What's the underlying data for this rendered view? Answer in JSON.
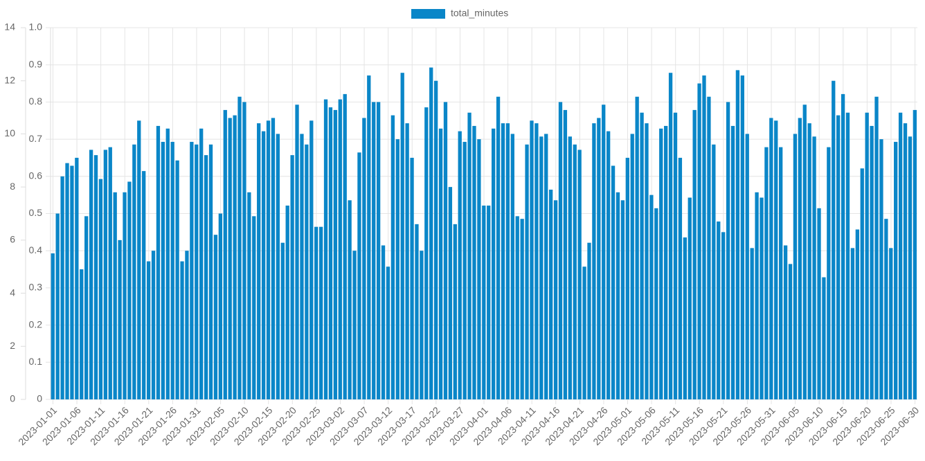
{
  "chart_data": {
    "type": "bar",
    "categories": [
      "2023-01-01",
      null,
      null,
      null,
      null,
      "2023-01-06",
      null,
      null,
      null,
      null,
      "2023-01-11",
      null,
      null,
      null,
      null,
      "2023-01-16",
      null,
      null,
      null,
      null,
      "2023-01-21",
      null,
      null,
      null,
      null,
      "2023-01-26",
      null,
      null,
      null,
      null,
      "2023-01-31",
      null,
      null,
      null,
      null,
      "2023-02-05",
      null,
      null,
      null,
      null,
      "2023-02-10",
      null,
      null,
      null,
      null,
      "2023-02-15",
      null,
      null,
      null,
      null,
      "2023-02-20",
      null,
      null,
      null,
      null,
      "2023-02-25",
      null,
      null,
      null,
      null,
      "2023-03-02",
      null,
      null,
      null,
      null,
      "2023-03-07",
      null,
      null,
      null,
      null,
      "2023-03-12",
      null,
      null,
      null,
      null,
      "2023-03-17",
      null,
      null,
      null,
      null,
      "2023-03-22",
      null,
      null,
      null,
      null,
      "2023-03-27",
      null,
      null,
      null,
      null,
      "2023-04-01",
      null,
      null,
      null,
      null,
      "2023-04-06",
      null,
      null,
      null,
      null,
      "2023-04-11",
      null,
      null,
      null,
      null,
      "2023-04-16",
      null,
      null,
      null,
      null,
      "2023-04-21",
      null,
      null,
      null,
      null,
      "2023-04-26",
      null,
      null,
      null,
      null,
      "2023-05-01",
      null,
      null,
      null,
      null,
      "2023-05-06",
      null,
      null,
      null,
      null,
      "2023-05-11",
      null,
      null,
      null,
      null,
      "2023-05-16",
      null,
      null,
      null,
      null,
      "2023-05-21",
      null,
      null,
      null,
      null,
      "2023-05-26",
      null,
      null,
      null,
      null,
      "2023-05-31",
      null,
      null,
      null,
      null,
      "2023-06-05",
      null,
      null,
      null,
      null,
      "2023-06-10",
      null,
      null,
      null,
      null,
      "2023-06-15",
      null,
      null,
      null,
      null,
      "2023-06-20",
      null,
      null,
      null,
      null,
      "2023-06-25",
      null,
      null,
      null,
      null,
      "2023-06-30"
    ],
    "series": [
      {
        "name": "total_minutes",
        "color": "#0a86c8",
        "values": [
          5.5,
          7.0,
          8.4,
          8.9,
          8.8,
          9.1,
          4.9,
          6.9,
          9.4,
          9.2,
          8.3,
          9.4,
          9.5,
          7.8,
          6.0,
          7.8,
          8.2,
          9.6,
          10.5,
          8.6,
          5.2,
          5.6,
          10.3,
          9.7,
          10.2,
          9.7,
          9.0,
          5.2,
          5.6,
          9.7,
          9.6,
          10.2,
          9.2,
          9.6,
          6.2,
          7.0,
          10.9,
          10.6,
          10.7,
          11.4,
          11.2,
          7.8,
          6.9,
          10.4,
          10.1,
          10.5,
          10.6,
          10.0,
          5.9,
          7.3,
          9.2,
          11.1,
          10.0,
          9.6,
          10.5,
          6.5,
          6.5,
          11.3,
          11.0,
          10.9,
          11.3,
          11.5,
          7.5,
          5.6,
          9.3,
          10.6,
          12.2,
          11.2,
          11.2,
          5.8,
          5.0,
          10.7,
          9.8,
          12.3,
          10.4,
          9.1,
          6.6,
          5.6,
          11.0,
          12.5,
          12.0,
          10.2,
          11.2,
          8.0,
          6.6,
          10.1,
          9.7,
          10.8,
          10.3,
          9.8,
          7.3,
          7.3,
          10.2,
          11.4,
          10.4,
          10.4,
          10.0,
          6.9,
          6.8,
          9.6,
          10.5,
          10.4,
          9.9,
          10.0,
          7.9,
          7.5,
          11.2,
          10.9,
          9.9,
          9.6,
          9.4,
          5.0,
          5.9,
          10.4,
          10.6,
          11.1,
          10.1,
          8.8,
          7.8,
          7.5,
          9.1,
          10.0,
          11.4,
          10.8,
          10.4,
          7.7,
          7.2,
          10.2,
          10.3,
          12.3,
          10.8,
          9.1,
          6.1,
          7.6,
          10.9,
          11.9,
          12.2,
          11.4,
          9.6,
          6.7,
          6.3,
          11.2,
          10.3,
          12.4,
          12.2,
          10.0,
          5.7,
          7.8,
          7.6,
          9.5,
          10.6,
          10.5,
          9.5,
          5.8,
          5.1,
          10.0,
          10.6,
          11.1,
          10.4,
          9.9,
          7.2,
          4.6,
          9.5,
          12.0,
          10.7,
          11.5,
          10.8,
          5.7,
          6.4,
          8.7,
          10.8,
          10.3,
          11.4,
          9.8,
          6.8,
          5.7,
          9.7,
          10.8,
          10.4,
          9.9,
          10.9
        ]
      }
    ],
    "ylim": [
      0,
      14
    ],
    "yticks": [
      0,
      2,
      4,
      6,
      8,
      10,
      12,
      14
    ],
    "y2lim": [
      0,
      1
    ],
    "y2ticks": [
      0,
      0.1,
      0.2,
      0.3,
      0.4,
      0.5,
      0.6,
      0.7,
      0.8,
      0.9,
      {
        "value": 1,
        "label": "1.0"
      }
    ],
    "grid": true,
    "legend": "top"
  }
}
